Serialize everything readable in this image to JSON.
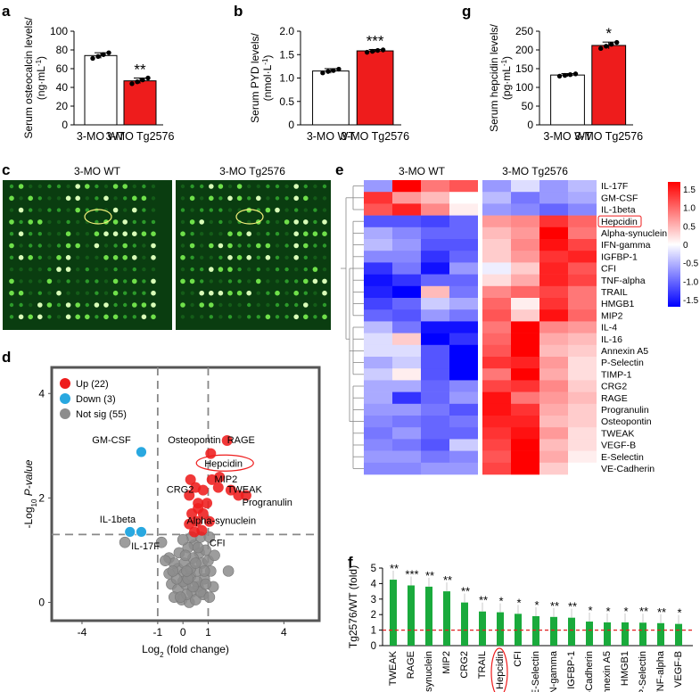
{
  "panels": {
    "a": "a",
    "b": "b",
    "c": "c",
    "d": "d",
    "e": "e",
    "f": "f",
    "g": "g"
  },
  "colors": {
    "red": "#ee1c1c",
    "green": "#1aaa3c",
    "blue": "#29a8e0",
    "grey": "#8c8c8c",
    "dash": "#e02020"
  },
  "chart_data": [
    {
      "id": "a",
      "type": "bar",
      "categories": [
        "3-MO WT",
        "3-MO Tg2576"
      ],
      "values": [
        74,
        47
      ],
      "errors": [
        3,
        3
      ],
      "points": [
        [
          71,
          73,
          75,
          77
        ],
        [
          44,
          46,
          48,
          50
        ]
      ],
      "ylabel_line1": "Serum osteocalcin levels/",
      "ylabel_line2": "(ng·mL",
      "ylabel_sup": "-1",
      "ylabel_close": ")",
      "ylim": [
        0,
        100
      ],
      "yticks": [
        "0",
        "20",
        "40",
        "60",
        "80",
        "100"
      ],
      "significance": "**"
    },
    {
      "id": "b",
      "type": "bar",
      "categories": [
        "3-MO WT",
        "3-MO Tg2576"
      ],
      "values": [
        1.15,
        1.58
      ],
      "errors": [
        0.05,
        0.03
      ],
      "points": [
        [
          1.11,
          1.14,
          1.16,
          1.19
        ],
        [
          1.55,
          1.57,
          1.59,
          1.6
        ]
      ],
      "ylabel_line1": "Serum PYD levels/",
      "ylabel_line2": "(nmol·L",
      "ylabel_sup": "-1",
      "ylabel_close": ")",
      "ylim": [
        0,
        2.0
      ],
      "yticks": [
        "0",
        "0.5",
        "1.0",
        "1.5",
        "2.0"
      ],
      "significance": "***"
    },
    {
      "id": "g",
      "type": "bar",
      "categories": [
        "3-MO WT",
        "3-MO Tg2576"
      ],
      "values": [
        133,
        212
      ],
      "errors": [
        4,
        9
      ],
      "points": [
        [
          130,
          132,
          134,
          136
        ],
        [
          204,
          210,
          215,
          220
        ]
      ],
      "ylabel_line1": "Serum hepcidin levels/",
      "ylabel_line2": "(pg·mL",
      "ylabel_sup": "-1",
      "ylabel_close": ")",
      "ylim": [
        0,
        250
      ],
      "yticks": [
        "0",
        "50",
        "100",
        "150",
        "200",
        "250"
      ],
      "significance": "*"
    },
    {
      "id": "c",
      "type": "other",
      "title_left": "3-MO WT",
      "title_right": "3-MO Tg2576"
    },
    {
      "id": "d",
      "type": "scatter",
      "xlabel_pre": "Log",
      "xlabel_sub": "2",
      "xlabel_post": " (fold change)",
      "ylabel_pre": "-Log",
      "ylabel_sub": "10",
      "ylabel_post": " P-value",
      "xlim": [
        -5.2,
        5.4
      ],
      "ylim": [
        -0.35,
        4.5
      ],
      "xticks": [
        {
          "v": -4,
          "t": "-4"
        },
        {
          "v": -1,
          "t": "-1"
        },
        {
          "v": 0,
          "t": "0"
        },
        {
          "v": 1,
          "t": "1"
        },
        {
          "v": 4,
          "t": "4"
        }
      ],
      "yticks": [
        {
          "v": 0,
          "t": "0"
        },
        {
          "v": 2,
          "t": "2"
        },
        {
          "v": 4,
          "t": "4"
        }
      ],
      "thresholds": {
        "x": [
          -1,
          1
        ],
        "y": 1.3
      },
      "legend": [
        {
          "label": "Up (22)",
          "color": "#ee1c1c"
        },
        {
          "label": "Down (3)",
          "color": "#29a8e0"
        },
        {
          "label": "Not sig (55)",
          "color": "#8c8c8c"
        }
      ],
      "labels": [
        {
          "t": "GM-CSF",
          "x": -3.6,
          "y": 3.05
        },
        {
          "t": "Osteopontin",
          "x": -0.6,
          "y": 3.05
        },
        {
          "t": "RAGE",
          "x": 1.75,
          "y": 3.05
        },
        {
          "t": "Hepcidin",
          "x": 0.85,
          "y": 2.6
        },
        {
          "t": "MIP2",
          "x": 1.25,
          "y": 2.3
        },
        {
          "t": "CRG2",
          "x": -0.65,
          "y": 2.1
        },
        {
          "t": "TWEAK",
          "x": 1.75,
          "y": 2.1
        },
        {
          "t": "Progranulin",
          "x": 2.35,
          "y": 1.85
        },
        {
          "t": "Alpha-synuclein",
          "x": 0.15,
          "y": 1.5
        },
        {
          "t": "IL-1beta",
          "x": -3.3,
          "y": 1.53
        },
        {
          "t": "CFI",
          "x": 1.05,
          "y": 1.08
        },
        {
          "t": "IL-17F",
          "x": -2.05,
          "y": 1.02
        }
      ],
      "up": [
        [
          1.75,
          3.1
        ],
        [
          1.1,
          2.85
        ],
        [
          1.45,
          2.4
        ],
        [
          1.9,
          2.15
        ],
        [
          2.2,
          2.05
        ],
        [
          2.5,
          2.05
        ],
        [
          1.4,
          2.2
        ],
        [
          0.5,
          2.2
        ],
        [
          0.3,
          2.35
        ],
        [
          0.8,
          2.15
        ],
        [
          1.15,
          2.35
        ],
        [
          0.25,
          2.05
        ],
        [
          0.6,
          1.9
        ],
        [
          0.95,
          1.9
        ],
        [
          0.55,
          1.55
        ],
        [
          0.8,
          1.7
        ],
        [
          0.6,
          1.8
        ],
        [
          0.25,
          1.5
        ],
        [
          0.45,
          1.35
        ],
        [
          1.05,
          1.55
        ],
        [
          0.75,
          1.38
        ],
        [
          0.35,
          1.7
        ]
      ],
      "down": [
        [
          -1.65,
          2.88
        ],
        [
          -2.1,
          1.35
        ],
        [
          -1.65,
          1.35
        ]
      ],
      "ns": [
        [
          -2.3,
          1.15
        ],
        [
          -0.85,
          1.15
        ],
        [
          -0.55,
          0.85
        ],
        [
          -0.2,
          0.65
        ],
        [
          0.05,
          0.55
        ],
        [
          0.3,
          0.5
        ],
        [
          0.55,
          0.6
        ],
        [
          0.85,
          0.45
        ],
        [
          1.1,
          0.6
        ],
        [
          1.2,
          0.3
        ],
        [
          -0.45,
          0.35
        ],
        [
          -0.2,
          0.25
        ],
        [
          0.1,
          0.35
        ],
        [
          0.35,
          0.2
        ],
        [
          0.6,
          0.3
        ],
        [
          0.8,
          0.15
        ],
        [
          -0.05,
          0.05
        ],
        [
          0.25,
          0.0
        ],
        [
          0.5,
          0.05
        ],
        [
          -0.35,
          0.1
        ],
        [
          0.15,
          0.15
        ],
        [
          0.65,
          0.95
        ],
        [
          0.4,
          0.85
        ],
        [
          0.9,
          1.0
        ],
        [
          -0.15,
          0.95
        ],
        [
          0.05,
          0.75
        ],
        [
          0.45,
          1.1
        ],
        [
          0.75,
          0.75
        ],
        [
          1.0,
          0.8
        ],
        [
          0.2,
          1.05
        ],
        [
          -0.55,
          0.55
        ],
        [
          -0.35,
          0.75
        ],
        [
          0.0,
          0.4
        ],
        [
          0.3,
          0.65
        ],
        [
          0.55,
          0.4
        ],
        [
          0.7,
          0.2
        ],
        [
          1.05,
          0.1
        ],
        [
          -0.25,
          0.45
        ],
        [
          0.1,
          0.9
        ],
        [
          0.6,
          1.05
        ],
        [
          1.25,
          0.9
        ],
        [
          0.9,
          0.35
        ],
        [
          -0.1,
          0.1
        ],
        [
          0.4,
          0.3
        ],
        [
          0.2,
          0.45
        ],
        [
          0.5,
          0.75
        ],
        [
          0.85,
          0.6
        ],
        [
          -0.4,
          0.6
        ],
        [
          0.35,
          1.25
        ],
        [
          0.7,
          1.25
        ],
        [
          1.05,
          1.25
        ],
        [
          -0.7,
          0.8
        ],
        [
          0.0,
          1.2
        ],
        [
          1.8,
          0.6
        ],
        [
          0.15,
          0.6
        ]
      ]
    },
    {
      "id": "e",
      "type": "heatmap",
      "col_groups": [
        "3-MO WT",
        "3-MO Tg2576"
      ],
      "rows": [
        "IL-17F",
        "GM-CSF",
        "IL-1beta",
        "Hepcidin",
        "Alpha-synuclein",
        "IFN-gamma",
        "IGFBP-1",
        "CFI",
        "TNF-alpha",
        "TRAIL",
        "HMGB1",
        "MIP2",
        "IL-4",
        "IL-16",
        "Annexin A5",
        "P-Selectin",
        "TIMP-1",
        "CRG2",
        "RAGE",
        "Progranulin",
        "Osteopontin",
        "TWEAK",
        "VEGF-B",
        "E-Selectin",
        "VE-Cadherin"
      ],
      "highlight": "Hepcidin",
      "values": [
        [
          -0.6,
          1.6,
          0.8,
          1.0,
          -0.6,
          -0.2,
          -0.6,
          -0.4
        ],
        [
          1.2,
          0.6,
          0.4,
          0.0,
          -0.4,
          -0.8,
          -0.6,
          -0.5
        ],
        [
          1.0,
          1.3,
          0.7,
          0.1,
          -0.6,
          -0.7,
          -0.9,
          -0.7
        ],
        [
          -1.0,
          -1.0,
          -1.1,
          -0.9,
          0.6,
          0.7,
          1.2,
          0.9
        ],
        [
          -0.5,
          -0.7,
          -0.9,
          -0.9,
          0.4,
          0.6,
          1.5,
          0.8
        ],
        [
          -0.4,
          -0.6,
          -1.0,
          -1.0,
          0.3,
          0.7,
          1.4,
          1.1
        ],
        [
          -0.7,
          -0.7,
          -1.2,
          -0.9,
          0.3,
          0.6,
          1.2,
          1.3
        ],
        [
          -1.2,
          -0.8,
          -1.4,
          -0.6,
          -0.1,
          0.3,
          1.3,
          1.0
        ],
        [
          -1.4,
          -1.2,
          -0.9,
          -0.9,
          0.2,
          0.5,
          1.3,
          1.1
        ],
        [
          -1.3,
          -1.5,
          0.4,
          -0.8,
          0.7,
          0.9,
          1.1,
          0.8
        ],
        [
          -1.1,
          -0.9,
          -0.3,
          -0.5,
          0.9,
          0.1,
          1.2,
          0.8
        ],
        [
          -0.9,
          -1.0,
          -0.6,
          -0.8,
          1.0,
          0.3,
          1.4,
          0.9
        ],
        [
          -0.4,
          -0.8,
          -1.4,
          -1.4,
          0.8,
          1.6,
          0.7,
          0.6
        ],
        [
          -0.2,
          0.3,
          -1.5,
          -1.2,
          0.9,
          1.6,
          0.5,
          0.4
        ],
        [
          -0.2,
          -0.2,
          -1.0,
          -1.5,
          1.0,
          1.7,
          0.4,
          0.3
        ],
        [
          -0.5,
          -0.3,
          -1.0,
          -1.6,
          1.2,
          1.3,
          0.6,
          0.2
        ],
        [
          -0.3,
          0.1,
          -1.0,
          -1.7,
          0.8,
          1.6,
          0.5,
          0.2
        ],
        [
          -0.5,
          -0.5,
          -0.9,
          -0.7,
          1.1,
          1.2,
          0.7,
          0.3
        ],
        [
          -0.5,
          -1.2,
          -0.9,
          -0.6,
          1.4,
          0.8,
          0.6,
          0.4
        ],
        [
          -0.6,
          -0.6,
          -0.8,
          -1.0,
          1.4,
          1.2,
          0.5,
          0.3
        ],
        [
          -0.7,
          -0.8,
          -0.9,
          -0.8,
          1.3,
          1.3,
          0.4,
          0.3
        ],
        [
          -0.8,
          -0.6,
          -0.9,
          -0.9,
          1.2,
          1.4,
          0.6,
          0.2
        ],
        [
          -0.7,
          -0.8,
          -1.0,
          -0.3,
          1.1,
          1.5,
          0.4,
          0.2
        ],
        [
          -0.6,
          -0.6,
          -0.8,
          -0.7,
          1.0,
          1.5,
          0.5,
          0.1
        ],
        [
          -0.7,
          -0.7,
          -0.6,
          -0.6,
          1.1,
          1.5,
          0.3,
          0.0
        ]
      ],
      "scale": [
        -1.5,
        1.5
      ],
      "scale_ticks": [
        "1.5",
        "1.0",
        "0.5",
        "0",
        "-0.5",
        "-1.0",
        "-1.5"
      ]
    },
    {
      "id": "f",
      "type": "bar",
      "ylabel": "Tg2576/WT (fold)",
      "ylim": [
        0,
        5
      ],
      "yticks": [
        "0",
        "1",
        "2",
        "3",
        "4",
        "5"
      ],
      "reference_line": 1,
      "highlight": "Hepcidin",
      "categories": [
        "TWEAK",
        "RAGE",
        "Alpha-synuclein",
        "MIP2",
        "CRG2",
        "TRAIL",
        "Hepcidin",
        "CFI",
        "E-Selectin",
        "IFN-gamma",
        "IGFBP-1",
        "VE-Cadherin",
        "Annexin A5",
        "HMGB1",
        "P-Selectin",
        "TNF-alpha",
        "VEGF-B"
      ],
      "values": [
        4.25,
        3.88,
        3.8,
        3.5,
        2.78,
        2.2,
        2.15,
        2.05,
        1.9,
        1.85,
        1.8,
        1.55,
        1.5,
        1.5,
        1.48,
        1.45,
        1.4
      ],
      "significance": [
        "**",
        "***",
        "**",
        "**",
        "**",
        "**",
        "*",
        "*",
        "*",
        "**",
        "**",
        "*",
        "*",
        "*",
        "**",
        "**",
        "*"
      ]
    }
  ]
}
